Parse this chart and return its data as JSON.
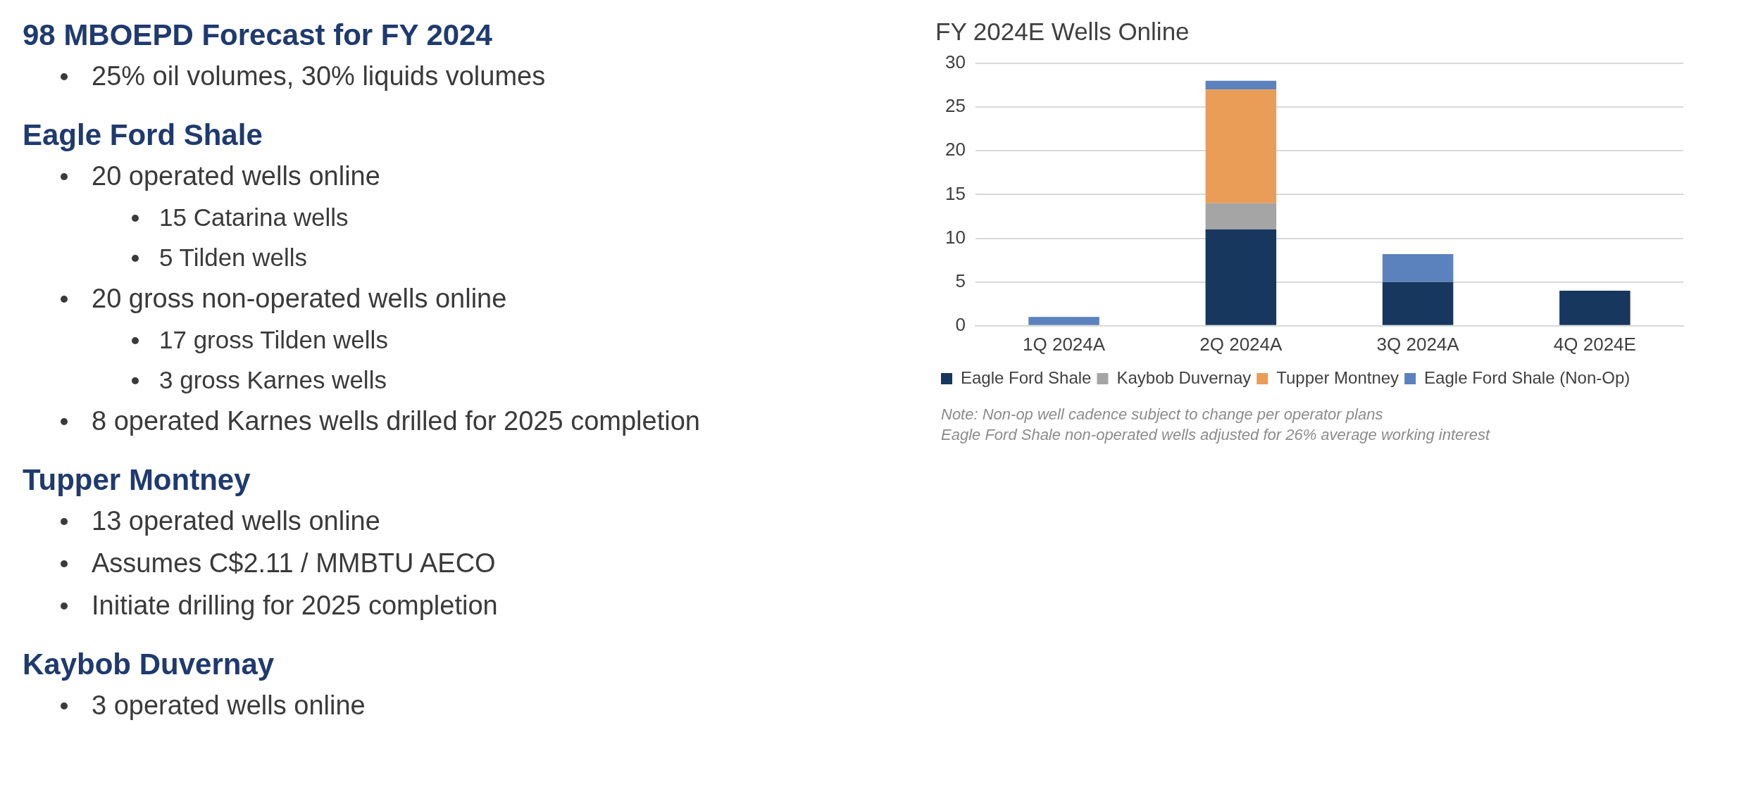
{
  "chart_data": {
    "type": "bar",
    "title": "FY 2024E Wells Online",
    "categories": [
      "1Q 2024A",
      "2Q 2024A",
      "3Q 2024A",
      "4Q 2024E"
    ],
    "stacked": true,
    "series": [
      {
        "name": "Eagle Ford Shale",
        "color": "#17375e",
        "values": [
          0,
          11,
          5,
          4
        ]
      },
      {
        "name": "Kaybob Duvernay",
        "color": "#a5a5a5",
        "values": [
          0,
          3,
          0,
          0
        ]
      },
      {
        "name": "Tupper Montney",
        "color": "#e99d56",
        "values": [
          0,
          13,
          0,
          0
        ]
      },
      {
        "name": "Eagle Ford Shale (Non-Op)",
        "color": "#5b82bc",
        "values": [
          1,
          1,
          3.2,
          0
        ]
      }
    ],
    "ylim": [
      0,
      30
    ],
    "yticks": [
      0,
      5,
      10,
      15,
      20,
      25,
      30
    ],
    "grid": "y",
    "legend": "bottom",
    "annotations": [
      "98 MBOEPD Forecast for FY 2024",
      "25% oil volumes, 30% liquids volumes",
      "Eagle Ford Shale",
      "20 operated wells online",
      "15 Catarina wells",
      "5 Tilden wells",
      "20 gross non-operated wells online",
      "17 gross Tilden wells",
      "3 gross Karnes wells",
      "8 operated Karnes wells drilled for 2025 completion",
      "Tupper Montney",
      "13 operated wells online",
      "Assumes C$2.11 / MMBTU AECO",
      "Initiate drilling for 2025 completion",
      "Kaybob Duvernay",
      "3 operated wells online",
      "Note: Non-op well cadence subject to change per operator plans",
      "Eagle Ford Shale non-operated wells adjusted for 26% average working interest"
    ]
  }
}
